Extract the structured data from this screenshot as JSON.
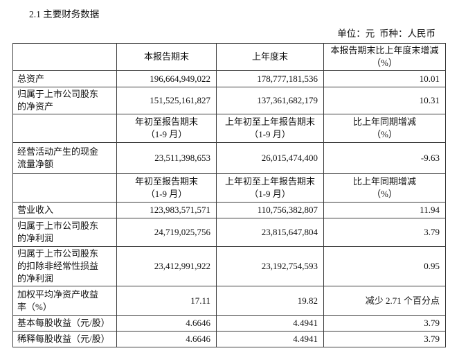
{
  "page": {
    "section_title": "2.1 主要财务数据",
    "unit_note": "单位：元  币种：人民币",
    "text_color": "#111111",
    "border_color": "#3c3c3c",
    "background_color": "#ffffff"
  },
  "table": {
    "rows": [
      {
        "type": "header",
        "cells": [
          "",
          "本报告期末",
          "上年度末",
          "本报告期末比上年度末增减\n（%）"
        ]
      },
      {
        "type": "data",
        "cells": [
          "总资产",
          "196,664,949,022",
          "178,777,181,536",
          "10.01"
        ]
      },
      {
        "type": "data",
        "cells": [
          "归属于上市公司股东\n的净资产",
          "151,525,161,827",
          "137,361,682,179",
          "10.31"
        ]
      },
      {
        "type": "header",
        "cells": [
          "",
          "年初至报告期末\n（1-9 月）",
          "上年初至上年报告期末\n（1-9 月）",
          "比上年同期增减\n（%）"
        ]
      },
      {
        "type": "data",
        "cells": [
          "经营活动产生的现金\n流量净额",
          "23,511,398,653",
          "26,015,474,400",
          "-9.63"
        ]
      },
      {
        "type": "header",
        "cells": [
          "",
          "年初至报告期末\n（1-9 月）",
          "上年初至上年报告期末\n（1-9 月）",
          "比上年同期增减\n（%）"
        ]
      },
      {
        "type": "data",
        "cells": [
          "营业收入",
          "123,983,571,571",
          "110,756,382,807",
          "11.94"
        ]
      },
      {
        "type": "data",
        "cells": [
          "归属于上市公司股东\n的净利润",
          "24,719,025,756",
          "23,815,647,804",
          "3.79"
        ]
      },
      {
        "type": "data",
        "cells": [
          "归属于上市公司股东\n的扣除非经常性损益\n的净利润",
          "23,412,991,922",
          "23,192,754,593",
          "0.95"
        ]
      },
      {
        "type": "data",
        "cells": [
          "加权平均净资产收益\n率（%）",
          "17.11",
          "19.82",
          "减少 2.71 个百分点"
        ]
      },
      {
        "type": "data",
        "cells": [
          "基本每股收益（元/股）",
          "4.6646",
          "4.4941",
          "3.79"
        ]
      },
      {
        "type": "data",
        "cells": [
          "稀释每股收益（元/股）",
          "4.6646",
          "4.4941",
          "3.79"
        ]
      }
    ]
  }
}
